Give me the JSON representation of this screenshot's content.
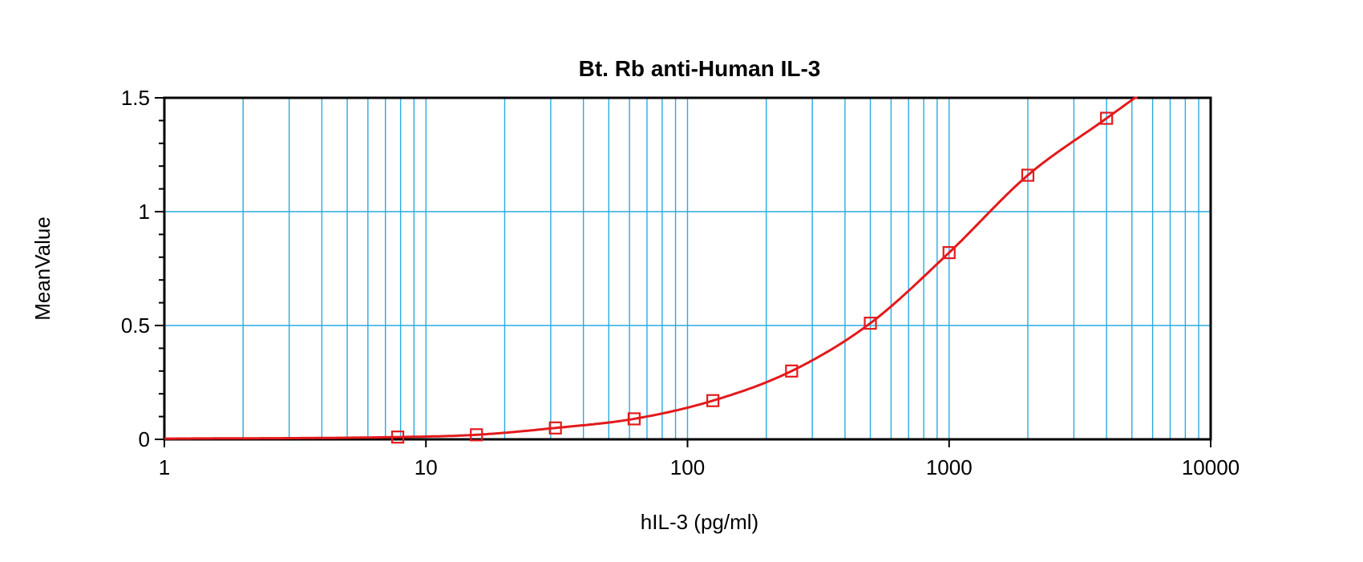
{
  "chart_data": {
    "type": "scatter",
    "title": "Bt. Rb anti-Human IL-3",
    "xlabel": "hIL-3 (pg/ml)",
    "ylabel": "MeanValue",
    "x_scale": "log",
    "xlim": [
      1,
      10000
    ],
    "ylim": [
      0,
      1.5
    ],
    "x_ticks": [
      "1",
      "10",
      "100",
      "1000",
      "10000"
    ],
    "y_ticks": [
      "0",
      "0.5",
      "1",
      "1.5"
    ],
    "grid": true,
    "colors": {
      "grid": "#29abe2",
      "series": "#e31a1c",
      "axis": "#000000"
    },
    "series": [
      {
        "x": [
          7.8,
          15.6,
          31.25,
          62.5,
          125,
          250,
          500,
          1000,
          2000,
          4000
        ],
        "y": [
          0.01,
          0.02,
          0.05,
          0.09,
          0.17,
          0.3,
          0.51,
          0.82,
          1.16,
          1.41
        ],
        "marker": "square",
        "fit_curve": true
      }
    ]
  }
}
